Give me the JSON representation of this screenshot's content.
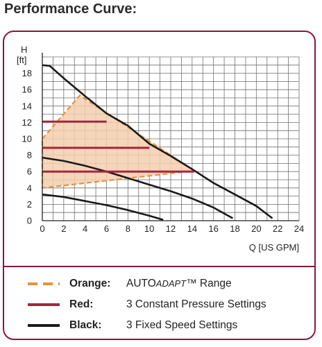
{
  "heading": "Performance Curve:",
  "chart_data": {
    "type": "line",
    "ylabel_top": "H",
    "ylabel_unit": "[ft]",
    "xlabel": "Q [US GPM]",
    "xlim": [
      0,
      24
    ],
    "ylim": [
      0,
      20
    ],
    "x_ticks": [
      0,
      2,
      4,
      6,
      8,
      10,
      12,
      14,
      16,
      18,
      20,
      22,
      24
    ],
    "y_ticks": [
      0,
      2,
      4,
      6,
      8,
      10,
      12,
      14,
      16,
      18
    ],
    "grid": true,
    "colors": {
      "orange": "#e8913c",
      "fill": "#f5cfae",
      "red": "#a8253f",
      "black": "#1a1a1a",
      "frame": "#8a1538",
      "grid": "#6f6f6f"
    },
    "series": [
      {
        "name": "3 Fixed Speed Settings",
        "style": "black",
        "points": [
          [
            0,
            19
          ],
          [
            0.7,
            18.9
          ],
          [
            2,
            17.4
          ],
          [
            4,
            15.2
          ],
          [
            6,
            13.1
          ],
          [
            8,
            11.6
          ],
          [
            10,
            9.4
          ],
          [
            12,
            7.9
          ],
          [
            14,
            6.3
          ],
          [
            16,
            4.6
          ],
          [
            18,
            3.2
          ],
          [
            20,
            1.8
          ],
          [
            21.5,
            0.3
          ]
        ]
      },
      {
        "name": "3 Fixed Speed Settings",
        "style": "black",
        "points": [
          [
            0,
            7.7
          ],
          [
            2,
            7.3
          ],
          [
            4,
            6.7
          ],
          [
            6,
            6.0
          ],
          [
            8,
            5.2
          ],
          [
            10,
            4.4
          ],
          [
            12,
            3.6
          ],
          [
            14,
            2.7
          ],
          [
            16,
            1.6
          ],
          [
            17.8,
            0.3
          ]
        ]
      },
      {
        "name": "3 Fixed Speed Settings",
        "style": "black",
        "points": [
          [
            0,
            3.2
          ],
          [
            2,
            2.9
          ],
          [
            4,
            2.4
          ],
          [
            6,
            1.9
          ],
          [
            8,
            1.3
          ],
          [
            10,
            0.6
          ],
          [
            11.3,
            0.1
          ]
        ]
      },
      {
        "name": "3 Constant Pressure Settings",
        "style": "red",
        "points": [
          [
            0,
            12.1
          ],
          [
            6,
            12.1
          ]
        ]
      },
      {
        "name": "3 Constant Pressure Settings",
        "style": "red",
        "points": [
          [
            0,
            8.9
          ],
          [
            10,
            8.9
          ]
        ]
      },
      {
        "name": "3 Constant Pressure Settings",
        "style": "red",
        "points": [
          [
            0,
            6.0
          ],
          [
            14.2,
            6.0
          ]
        ]
      },
      {
        "name": "AUTOADAPT™ Range",
        "style": "orange-area",
        "points": [
          [
            0,
            10
          ],
          [
            3.5,
            15.3
          ],
          [
            14.2,
            6.1
          ],
          [
            0,
            4
          ]
        ]
      }
    ]
  },
  "legend": [
    {
      "key": "Orange:",
      "text_parts": [
        "AUTO",
        "ADAPT",
        "™ Range"
      ],
      "style": "orange"
    },
    {
      "key": "Red:",
      "text_parts": [
        "3 Constant Pressure Settings"
      ],
      "style": "red"
    },
    {
      "key": "Black:",
      "text_parts": [
        "3 Fixed Speed Settings"
      ],
      "style": "black"
    }
  ]
}
